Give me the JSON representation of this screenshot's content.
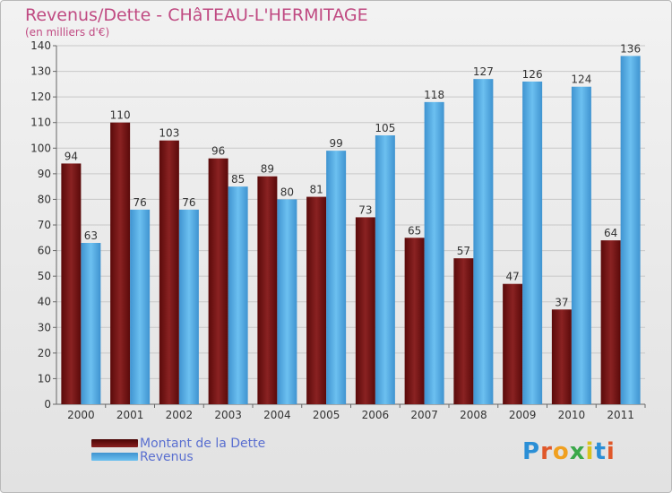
{
  "header": {
    "title": "Revenus/Dette - CHâTEAU-L'HERMITAGE",
    "subtitle": "(en milliers d'€)"
  },
  "chart_data": {
    "type": "bar",
    "categories": [
      "2000",
      "2001",
      "2002",
      "2003",
      "2004",
      "2005",
      "2006",
      "2007",
      "2008",
      "2009",
      "2010",
      "2011"
    ],
    "series": [
      {
        "name": "Montant de la Dette",
        "values": [
          94,
          110,
          103,
          96,
          89,
          81,
          73,
          65,
          57,
          47,
          37,
          64
        ],
        "color": "#7a1212"
      },
      {
        "name": "Revenus",
        "values": [
          63,
          76,
          76,
          85,
          80,
          99,
          105,
          118,
          127,
          126,
          124,
          136
        ],
        "color": "#5aade4"
      }
    ],
    "ylim": [
      0,
      140
    ],
    "yticks": [
      0,
      10,
      20,
      30,
      40,
      50,
      60,
      70,
      80,
      90,
      100,
      110,
      120,
      130,
      140
    ],
    "grid": true,
    "legend_position": "bottom-left"
  },
  "legend": [
    {
      "label": "Montant de la Dette",
      "color": "#7a1212"
    },
    {
      "label": "Revenus",
      "color": "#5aade4"
    }
  ],
  "logo": {
    "text": "Proxiti"
  }
}
